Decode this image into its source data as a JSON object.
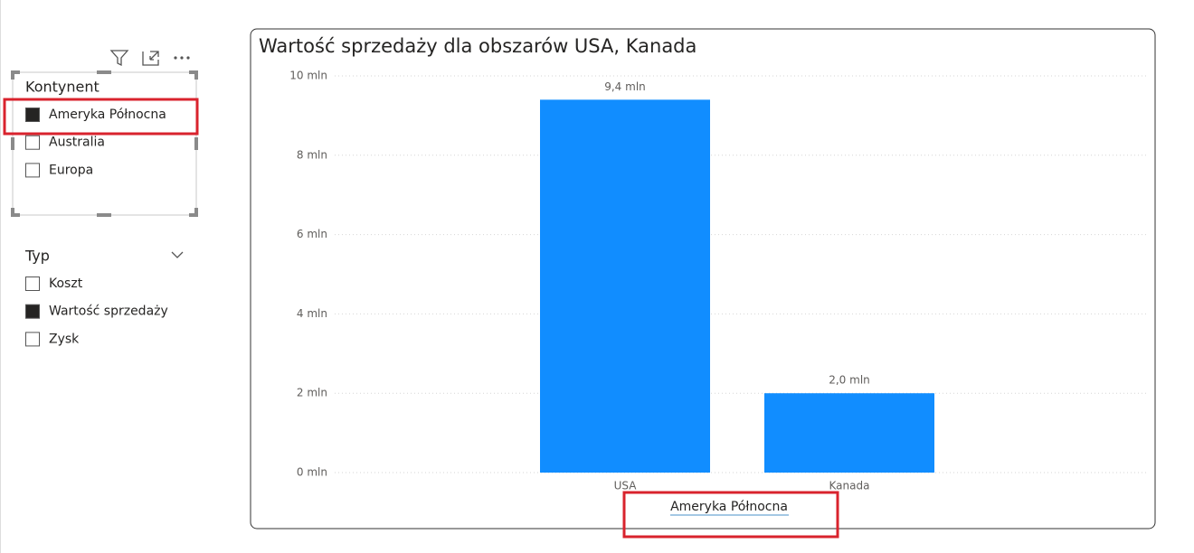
{
  "slicers": [
    {
      "title": "Kontynent",
      "items": [
        {
          "label": "Ameryka Północna",
          "checked": true
        },
        {
          "label": "Australia",
          "checked": false
        },
        {
          "label": "Europa",
          "checked": false
        }
      ]
    },
    {
      "title": "Typ",
      "items": [
        {
          "label": "Koszt",
          "checked": false
        },
        {
          "label": "Wartość sprzedaży",
          "checked": true
        },
        {
          "label": "Zysk",
          "checked": false
        }
      ]
    }
  ],
  "chart_data": {
    "type": "bar",
    "title": "Wartość sprzedaży dla obszarów USA, Kanada",
    "x_label": "Ameryka Północna",
    "categories": [
      "USA",
      "Kanada"
    ],
    "values": [
      9.4,
      2.0
    ],
    "value_labels": [
      "9,4 mln",
      "2,0 mln"
    ],
    "color": "#118dff",
    "ylim": [
      0,
      10
    ],
    "yticks": [
      {
        "value": 0,
        "label": "0 mln"
      },
      {
        "value": 2,
        "label": "2 mln"
      },
      {
        "value": 4,
        "label": "4 mln"
      },
      {
        "value": 6,
        "label": "6 mln"
      },
      {
        "value": 8,
        "label": "8 mln"
      },
      {
        "value": 10,
        "label": "10 mln"
      }
    ],
    "grid": true
  }
}
